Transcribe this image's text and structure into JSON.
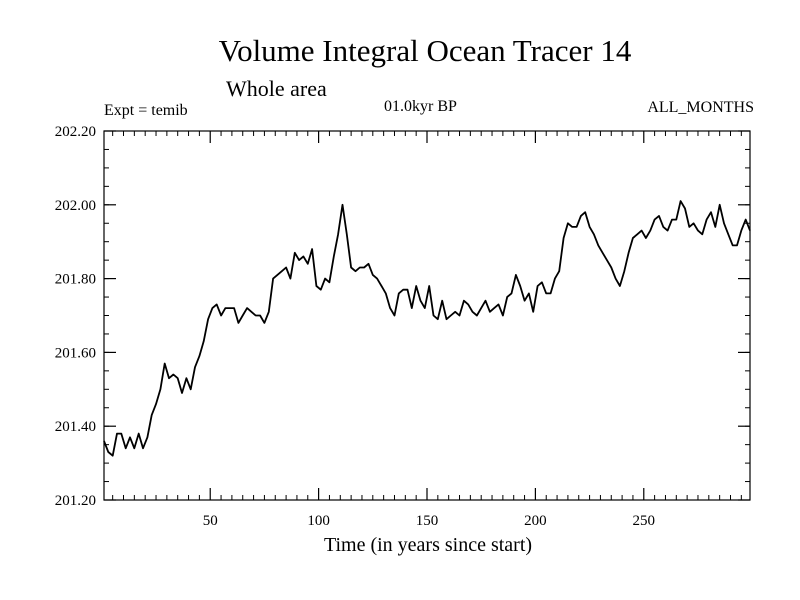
{
  "chart_data": {
    "type": "line",
    "title": "Volume Integral Ocean Tracer 14",
    "subtitle": "Whole area",
    "expt_label": "Expt = temib",
    "period_label": "01.0kyr BP",
    "months_label": "ALL_MONTHS",
    "xlabel": "Time (in years since start)",
    "ylabel": "",
    "xlim": [
      1,
      299
    ],
    "ylim": [
      201.2,
      202.2
    ],
    "x_ticks": [
      50,
      100,
      150,
      200,
      250
    ],
    "x_tick_labels": [
      "50",
      "100",
      "150",
      "200",
      "250"
    ],
    "y_ticks": [
      201.2,
      201.4,
      201.6,
      201.8,
      202.0,
      202.2
    ],
    "y_tick_labels": [
      "201.20",
      "201.40",
      "201.60",
      "201.80",
      "202.00",
      "202.20"
    ],
    "series": [
      {
        "name": "Volume Integral Ocean Tracer 14",
        "x": [
          1,
          3,
          5,
          7,
          9,
          11,
          13,
          15,
          17,
          19,
          21,
          23,
          25,
          27,
          29,
          31,
          33,
          35,
          37,
          39,
          41,
          43,
          45,
          47,
          49,
          51,
          53,
          55,
          57,
          59,
          61,
          63,
          65,
          67,
          69,
          71,
          73,
          75,
          77,
          79,
          81,
          83,
          85,
          87,
          89,
          91,
          93,
          95,
          97,
          99,
          101,
          103,
          105,
          107,
          109,
          111,
          113,
          115,
          117,
          119,
          121,
          123,
          125,
          127,
          129,
          131,
          133,
          135,
          137,
          139,
          141,
          143,
          145,
          147,
          149,
          151,
          153,
          155,
          157,
          159,
          161,
          163,
          165,
          167,
          169,
          171,
          173,
          175,
          177,
          179,
          181,
          183,
          185,
          187,
          189,
          191,
          193,
          195,
          197,
          199,
          201,
          203,
          205,
          207,
          209,
          211,
          213,
          215,
          217,
          219,
          221,
          223,
          225,
          227,
          229,
          231,
          233,
          235,
          237,
          239,
          241,
          243,
          245,
          247,
          249,
          251,
          253,
          255,
          257,
          259,
          261,
          263,
          265,
          267,
          269,
          271,
          273,
          275,
          277,
          279,
          281,
          283,
          285,
          287,
          289,
          291,
          293,
          295,
          297,
          299
        ],
        "values": [
          201.36,
          201.33,
          201.32,
          201.38,
          201.38,
          201.34,
          201.37,
          201.34,
          201.38,
          201.34,
          201.37,
          201.43,
          201.46,
          201.5,
          201.57,
          201.53,
          201.54,
          201.53,
          201.49,
          201.53,
          201.5,
          201.56,
          201.59,
          201.63,
          201.69,
          201.72,
          201.73,
          201.7,
          201.72,
          201.72,
          201.72,
          201.68,
          201.7,
          201.72,
          201.71,
          201.7,
          201.7,
          201.68,
          201.71,
          201.8,
          201.81,
          201.82,
          201.83,
          201.8,
          201.87,
          201.85,
          201.86,
          201.84,
          201.88,
          201.78,
          201.77,
          201.8,
          201.79,
          201.86,
          201.92,
          202.0,
          201.92,
          201.83,
          201.82,
          201.83,
          201.83,
          201.84,
          201.81,
          201.8,
          201.78,
          201.76,
          201.72,
          201.7,
          201.76,
          201.77,
          201.77,
          201.72,
          201.78,
          201.74,
          201.72,
          201.78,
          201.7,
          201.69,
          201.74,
          201.69,
          201.7,
          201.71,
          201.7,
          201.74,
          201.73,
          201.71,
          201.7,
          201.72,
          201.74,
          201.71,
          201.72,
          201.73,
          201.7,
          201.75,
          201.76,
          201.81,
          201.78,
          201.74,
          201.76,
          201.71,
          201.78,
          201.79,
          201.76,
          201.76,
          201.8,
          201.82,
          201.91,
          201.95,
          201.94,
          201.94,
          201.97,
          201.98,
          201.94,
          201.92,
          201.89,
          201.87,
          201.85,
          201.83,
          201.8,
          201.78,
          201.82,
          201.87,
          201.91,
          201.92,
          201.93,
          201.91,
          201.93,
          201.96,
          201.97,
          201.94,
          201.93,
          201.96,
          201.96,
          202.01,
          201.99,
          201.94,
          201.95,
          201.93,
          201.92,
          201.96,
          201.98,
          201.94,
          202.0,
          201.95,
          201.92,
          201.89,
          201.89,
          201.93,
          201.96,
          201.93
        ]
      }
    ]
  }
}
